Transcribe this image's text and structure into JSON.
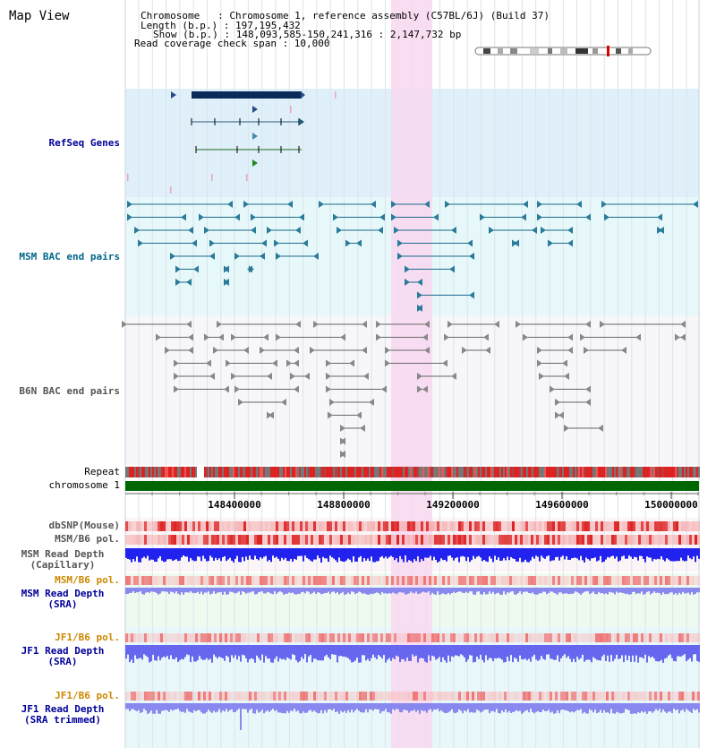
{
  "title": "Map View",
  "info": {
    "chromosome": "Chromosome   : Chromosome 1, reference assembly (C57BL/6J) (Build 37)",
    "length": "Length (b.p.) : 197,195,432",
    "show": "Show (b.p.) : 148,093,585-150,241,316 : 2,147,732 bp",
    "coverage": "Read coverage check span : 10,000"
  },
  "tracks": {
    "refseq": "RefSeq Genes",
    "msm_bac": "MSM BAC end pairs",
    "b6n_bac": "B6N BAC end pairs",
    "repeat": "Repeat",
    "chromosome": "chromosome 1",
    "dbsnp": "dbSNP(Mouse)",
    "msm_b6_pol": "MSM/B6 pol.",
    "msm_depth_cap_1": "MSM Read Depth",
    "msm_depth_cap_2": "(Capillary)",
    "msm_b6_pol2": "MSM/B6 pol.",
    "msm_depth_sra_1": "MSM Read Depth",
    "msm_depth_sra_2": "(SRA)",
    "jf1_pol": "JF1/B6 pol.",
    "jf1_depth_1": "JF1 Read Depth",
    "jf1_depth_2": "(SRA)",
    "jf1_pol2": "JF1/B6 pol.",
    "jf1_trim_1": "JF1 Read Depth",
    "jf1_trim_2": "(SRA trimmed)"
  },
  "axis": {
    "ticks": [
      "148400000",
      "148800000",
      "149200000",
      "149600000",
      "150000000"
    ]
  },
  "colors": {
    "refseq_bg": "#dff0fa",
    "msm_bg": "#e6f8fa",
    "b6n_bg": "#f4f4f8",
    "highlight": "#f8d8f0",
    "gene_line": "#2a5a7a",
    "msm_bac": "#1a6a8a",
    "b6n_bac": "#666666",
    "chromosome_bar": "#006600",
    "snp": "#dd2222",
    "depth_dark": "#2222ee",
    "depth_light": "#8888ee",
    "label_blue": "#000099",
    "label_teal": "#006688",
    "label_gray": "#555555",
    "label_orange": "#cc8800"
  }
}
